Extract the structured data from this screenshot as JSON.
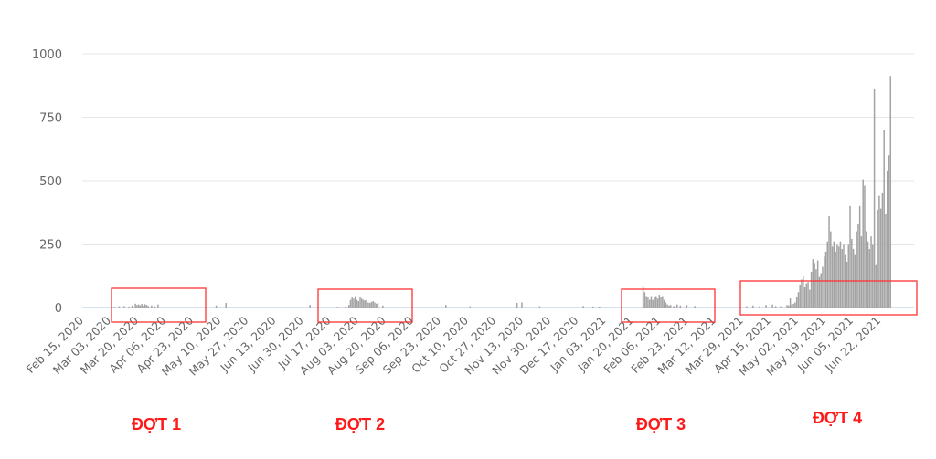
{
  "chart_data": {
    "type": "bar",
    "title": "",
    "xlabel": "",
    "ylabel": "",
    "ylim": [
      0,
      1000
    ],
    "yticks": [
      "0",
      "250",
      "500",
      "750",
      "1000"
    ],
    "grid": true,
    "legend": "none",
    "bar_color": "#a3a3a3",
    "baseline_color": "#c9d5ea",
    "grid_color": "#e6e6e6",
    "xtick_labels": [
      "Feb 15, 2020",
      "Mar 03, 2020",
      "Mar 20, 2020",
      "Apr 06, 2020",
      "Apr 23, 2020",
      "May 10, 2020",
      "May 27, 2020",
      "Jun 13, 2020",
      "Jun 30, 2020",
      "Jul 17, 2020",
      "Aug 03, 2020",
      "Aug 20, 2020",
      "Sep 06, 2020",
      "Sep 23, 2020",
      "Oct 10, 2020",
      "Oct 27, 2020",
      "Nov 13, 2020",
      "Nov 30, 2020",
      "Dec 17, 2020",
      "Jan 03, 2021",
      "Jan 20, 2021",
      "Feb 06, 2021",
      "Feb 23, 2021",
      "Mar 12, 2021",
      "Mar 29, 2021",
      "Apr 15, 2021",
      "May 02, 2021",
      "May 19, 2021",
      "Jun 05, 2021",
      "Jun 22, 2021"
    ],
    "values": {
      "2020-03-07": 3,
      "2020-03-10": 5,
      "2020-03-13": 6,
      "2020-03-16": 4,
      "2020-03-18": 8,
      "2020-03-20": 15,
      "2020-03-21": 10,
      "2020-03-22": 12,
      "2020-03-23": 9,
      "2020-03-24": 14,
      "2020-03-25": 7,
      "2020-03-26": 13,
      "2020-03-27": 10,
      "2020-03-28": 6,
      "2020-03-30": 8,
      "2020-04-01": 5,
      "2020-04-03": 12,
      "2020-05-09": 8,
      "2020-05-15": 18,
      "2020-07-06": 10,
      "2020-07-23": 3,
      "2020-07-28": 5,
      "2020-07-30": 10,
      "2020-07-31": 30,
      "2020-08-01": 40,
      "2020-08-02": 35,
      "2020-08-03": 45,
      "2020-08-04": 30,
      "2020-08-05": 25,
      "2020-08-06": 40,
      "2020-08-07": 35,
      "2020-08-08": 30,
      "2020-08-09": 28,
      "2020-08-10": 30,
      "2020-08-11": 20,
      "2020-08-12": 18,
      "2020-08-13": 22,
      "2020-08-14": 25,
      "2020-08-15": 20,
      "2020-08-16": 15,
      "2020-08-17": 18,
      "2020-08-20": 8,
      "2020-09-28": 10,
      "2020-10-13": 5,
      "2020-11-11": 18,
      "2020-11-14": 20,
      "2020-11-25": 5,
      "2020-12-22": 6,
      "2020-12-28": 4,
      "2021-01-01": 4,
      "2021-01-28": 85,
      "2021-01-29": 60,
      "2021-01-30": 45,
      "2021-01-31": 40,
      "2021-02-01": 30,
      "2021-02-02": 45,
      "2021-02-03": 30,
      "2021-02-04": 40,
      "2021-02-05": 45,
      "2021-02-06": 35,
      "2021-02-07": 50,
      "2021-02-08": 40,
      "2021-02-09": 45,
      "2021-02-10": 30,
      "2021-02-11": 20,
      "2021-02-12": 12,
      "2021-02-13": 8,
      "2021-02-14": 10,
      "2021-02-16": 6,
      "2021-02-18": 12,
      "2021-02-20": 8,
      "2021-02-24": 10,
      "2021-03-01": 6,
      "2021-04-02": 5,
      "2021-04-06": 8,
      "2021-04-10": 5,
      "2021-04-14": 10,
      "2021-04-18": 12,
      "2021-04-20": 6,
      "2021-04-23": 5,
      "2021-04-27": 10,
      "2021-04-28": 8,
      "2021-04-29": 36,
      "2021-04-30": 12,
      "2021-05-01": 15,
      "2021-05-02": 20,
      "2021-05-03": 40,
      "2021-05-04": 60,
      "2021-05-05": 90,
      "2021-05-06": 110,
      "2021-05-07": 125,
      "2021-05-08": 80,
      "2021-05-09": 95,
      "2021-05-10": 100,
      "2021-05-11": 70,
      "2021-05-12": 140,
      "2021-05-13": 190,
      "2021-05-14": 175,
      "2021-05-15": 150,
      "2021-05-16": 185,
      "2021-05-17": 120,
      "2021-05-18": 135,
      "2021-05-19": 160,
      "2021-05-20": 200,
      "2021-05-21": 220,
      "2021-05-22": 260,
      "2021-05-23": 360,
      "2021-05-24": 300,
      "2021-05-25": 240,
      "2021-05-26": 260,
      "2021-05-27": 220,
      "2021-05-28": 250,
      "2021-05-29": 240,
      "2021-05-30": 260,
      "2021-05-31": 230,
      "2021-06-01": 250,
      "2021-06-02": 210,
      "2021-06-03": 180,
      "2021-06-04": 250,
      "2021-06-05": 400,
      "2021-06-06": 270,
      "2021-06-07": 230,
      "2021-06-08": 210,
      "2021-06-09": 300,
      "2021-06-10": 330,
      "2021-06-11": 400,
      "2021-06-12": 280,
      "2021-06-13": 505,
      "2021-06-14": 480,
      "2021-06-15": 300,
      "2021-06-16": 260,
      "2021-06-17": 230,
      "2021-06-18": 280,
      "2021-06-19": 250,
      "2021-06-20": 860,
      "2021-06-21": 170,
      "2021-06-22": 385,
      "2021-06-23": 440,
      "2021-06-24": 390,
      "2021-06-25": 450,
      "2021-06-26": 700,
      "2021-06-27": 370,
      "2021-06-28": 540,
      "2021-06-29": 600,
      "2021-06-30": 913
    },
    "annotations": [
      {
        "label": "ĐỢT 1",
        "box_color": "#ff3333"
      },
      {
        "label": "ĐỢT 2",
        "box_color": "#ff3333"
      },
      {
        "label": "ĐỢT 3",
        "box_color": "#ff3333"
      },
      {
        "label": "ĐỢT 4",
        "box_color": "#ff3333"
      }
    ]
  }
}
